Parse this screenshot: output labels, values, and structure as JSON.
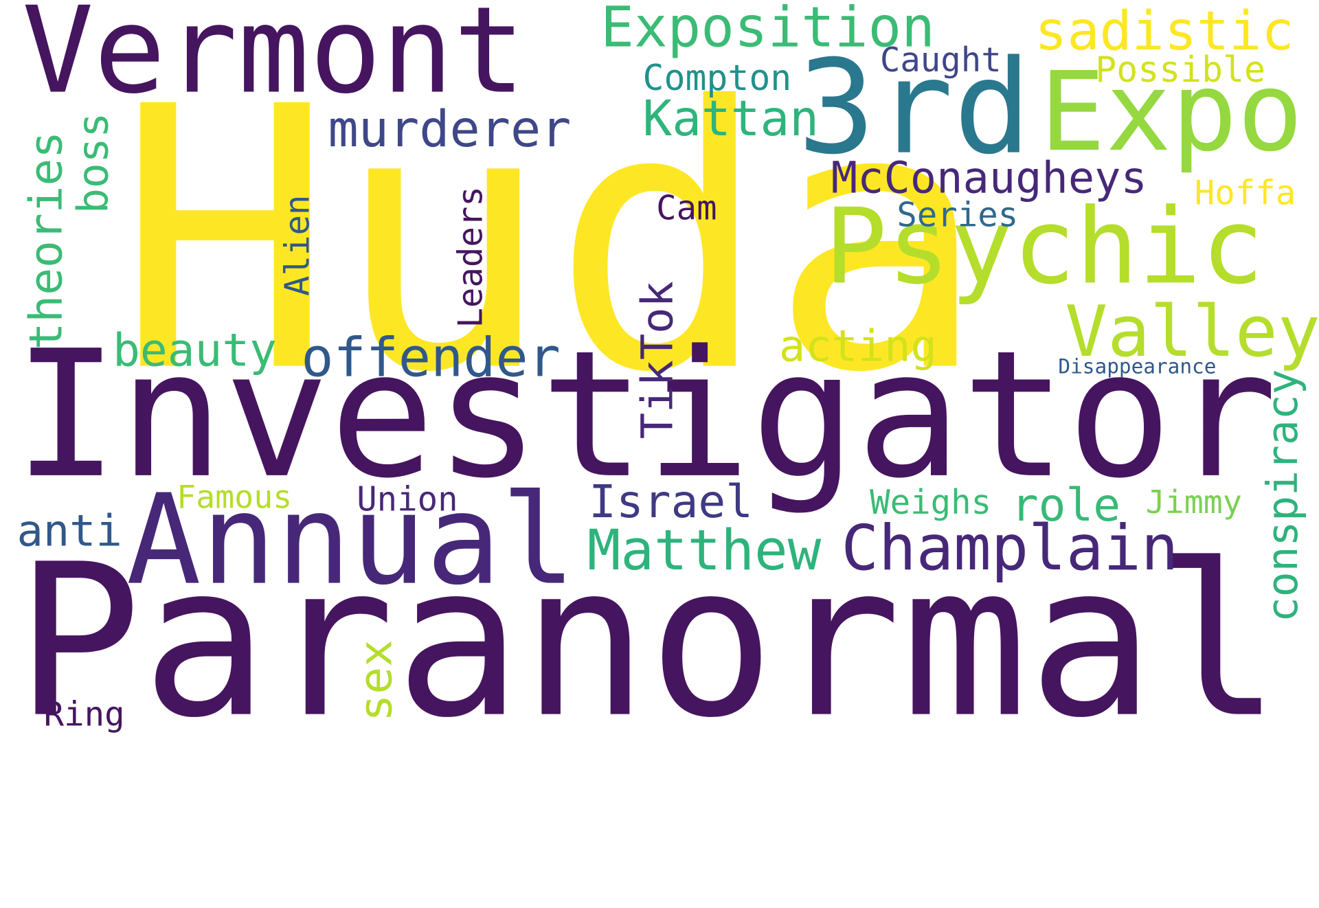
{
  "colors": {
    "background": "#ffffff",
    "dark_purple": "#46155f",
    "indigo": "#3f3a83",
    "slate_blue": "#30588a",
    "teal": "#23868b",
    "green": "#2eb37c",
    "lime": "#b5dd2b",
    "yellow": "#fde725"
  },
  "words": [
    {
      "text": "Huda"
    },
    {
      "text": "Investigator"
    },
    {
      "text": "Paranormal"
    },
    {
      "text": "Vermont"
    },
    {
      "text": "Annual"
    },
    {
      "text": "3rd"
    },
    {
      "text": "Expo"
    },
    {
      "text": "Psychic"
    },
    {
      "text": "Champlain"
    },
    {
      "text": "Exposition"
    },
    {
      "text": "sadistic"
    },
    {
      "text": "Valley"
    },
    {
      "text": "Matthew"
    },
    {
      "text": "offender"
    },
    {
      "text": "murderer"
    },
    {
      "text": "McConaugheys"
    },
    {
      "text": "Kattan"
    },
    {
      "text": "beauty"
    },
    {
      "text": "acting"
    },
    {
      "text": "theories"
    },
    {
      "text": "Israel"
    },
    {
      "text": "role"
    },
    {
      "text": "conspiracy"
    },
    {
      "text": "TikTok"
    },
    {
      "text": "boss"
    },
    {
      "text": "anti"
    },
    {
      "text": "sex"
    },
    {
      "text": "Caught"
    },
    {
      "text": "Compton"
    },
    {
      "text": "Possible"
    },
    {
      "text": "Hoffa"
    },
    {
      "text": "Series"
    },
    {
      "text": "Cam"
    },
    {
      "text": "Leaders"
    },
    {
      "text": "Alien"
    },
    {
      "text": "Union"
    },
    {
      "text": "Famous"
    },
    {
      "text": "Weighs"
    },
    {
      "text": "Jimmy"
    },
    {
      "text": "Disappearance"
    },
    {
      "text": "Ring"
    }
  ]
}
